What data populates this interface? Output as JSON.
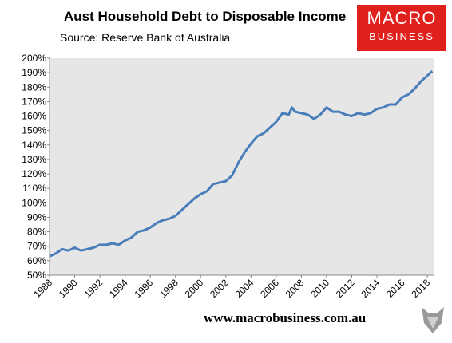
{
  "chart_data": {
    "type": "line",
    "title": "Aust Household Debt to Disposable Income",
    "subtitle": "Source: Reserve Bank of Australia",
    "logo": [
      "MACRO",
      "BUSINESS"
    ],
    "footer": "www.macrobusiness.com.au",
    "x": [
      1988.0,
      1988.5,
      1989.0,
      1989.5,
      1990.0,
      1990.5,
      1991.0,
      1991.5,
      1992.0,
      1992.5,
      1993.0,
      1993.5,
      1994.0,
      1994.5,
      1995.0,
      1995.5,
      1996.0,
      1996.5,
      1997.0,
      1997.5,
      1998.0,
      1998.5,
      1999.0,
      1999.5,
      2000.0,
      2000.5,
      2001.0,
      2001.5,
      2002.0,
      2002.5,
      2003.0,
      2003.5,
      2004.0,
      2004.5,
      2005.0,
      2005.5,
      2006.0,
      2006.5,
      2007.0,
      2007.25,
      2007.5,
      2008.0,
      2008.5,
      2009.0,
      2009.5,
      2010.0,
      2010.5,
      2011.0,
      2011.5,
      2012.0,
      2012.5,
      2013.0,
      2013.5,
      2014.0,
      2014.5,
      2015.0,
      2015.5,
      2016.0,
      2016.5,
      2017.0,
      2017.5,
      2018.0,
      2018.25,
      2018.4
    ],
    "series": [
      {
        "name": "Household debt to disposable income",
        "color": "#4a7ebb",
        "values": [
          63,
          65,
          68,
          67,
          69,
          67,
          68,
          69,
          71,
          71,
          72,
          71,
          74,
          76,
          80,
          81,
          83,
          86,
          88,
          89,
          91,
          95,
          99,
          103,
          106,
          108,
          113,
          114,
          115,
          119,
          128,
          135,
          141,
          146,
          148,
          152,
          156,
          162,
          161,
          166,
          163,
          162,
          161,
          158,
          161,
          166,
          163,
          163,
          161,
          160,
          162,
          161,
          162,
          165,
          166,
          168,
          168,
          173,
          175,
          179,
          184,
          188,
          190,
          191
        ]
      }
    ],
    "xlim": [
      1988,
      2018.5
    ],
    "xticks": [
      1988,
      1990,
      1992,
      1994,
      1996,
      1998,
      2000,
      2002,
      2004,
      2006,
      2008,
      2010,
      2012,
      2014,
      2016,
      2018
    ],
    "ylim": [
      50,
      200
    ],
    "yticks": [
      {
        "value": 50,
        "label": "50%"
      },
      {
        "value": 60,
        "label": "60%"
      },
      {
        "value": 70,
        "label": "70%"
      },
      {
        "value": 80,
        "label": "80%"
      },
      {
        "value": 90,
        "label": "90%"
      },
      {
        "value": 100,
        "label": "100%"
      },
      {
        "value": 110,
        "label": "110%"
      },
      {
        "value": 120,
        "label": "120%"
      },
      {
        "value": 130,
        "label": "130%"
      },
      {
        "value": 140,
        "label": "140%"
      },
      {
        "value": 150,
        "label": "150%"
      },
      {
        "value": 160,
        "label": "160%"
      },
      {
        "value": 170,
        "label": "170%"
      },
      {
        "value": 180,
        "label": "180%"
      },
      {
        "value": 190,
        "label": "190%"
      },
      {
        "value": 200,
        "label": "200%"
      }
    ],
    "grid": false,
    "background": "#e6e6e6"
  }
}
